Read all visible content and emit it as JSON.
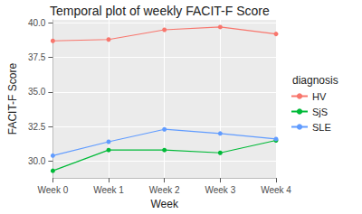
{
  "chart_data": {
    "type": "line",
    "title": "Temporal plot of weekly FACIT-F Score",
    "x_label": "Week",
    "y_label": "FACIT-F Score",
    "legend_title": "diagnosis",
    "categories": [
      "Week 0",
      "Week 1",
      "Week 2",
      "Week 3",
      "Week 4"
    ],
    "series": [
      {
        "name": "HV",
        "color": "#F8766D",
        "values": [
          38.7,
          38.8,
          39.5,
          39.7,
          39.2
        ]
      },
      {
        "name": "SjS",
        "color": "#00BA38",
        "values": [
          29.3,
          30.8,
          30.8,
          30.6,
          31.5
        ]
      },
      {
        "name": "SLE",
        "color": "#619CFF",
        "values": [
          30.4,
          31.4,
          32.3,
          32.0,
          31.6
        ]
      }
    ],
    "ylim": [
      28.78,
      40.22
    ],
    "yticks": [
      {
        "value": 30,
        "label": "30.0"
      },
      32.5,
      {
        "value": 35,
        "label": "35.0"
      },
      37.5,
      {
        "value": 40,
        "label": "40.0"
      }
    ],
    "grid": true,
    "legend": "right",
    "marker": "circle"
  }
}
